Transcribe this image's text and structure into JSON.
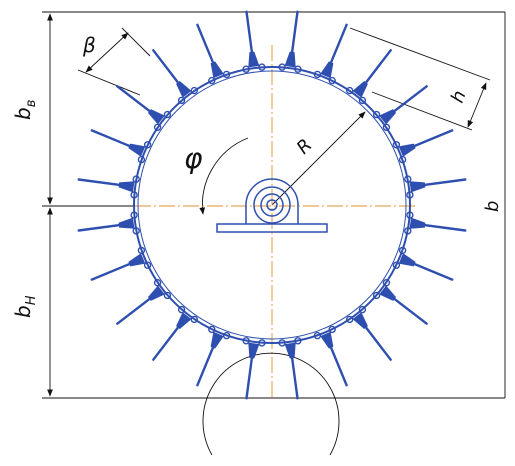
{
  "labels": {
    "b_top": "b",
    "b_top_sub": "в",
    "b_bottom": "b",
    "b_bottom_sub": "Н",
    "b_right": "b",
    "beta": "β",
    "h": "h",
    "R": "R",
    "phi": "φ"
  },
  "drum": {
    "tooth_count": 24
  },
  "colors": {
    "drum": "#2e4fb0",
    "centerline": "#e0902e",
    "lines": "#111111",
    "background": "#ffffff"
  }
}
